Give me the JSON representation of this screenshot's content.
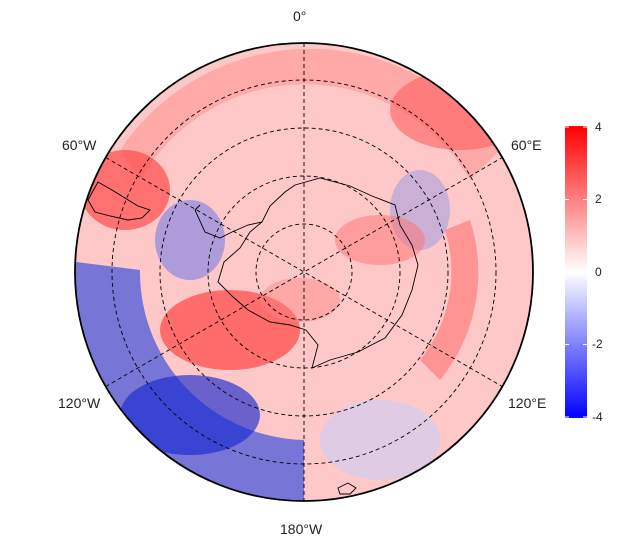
{
  "map": {
    "projection": "south-polar-stereographic",
    "grid_style": "dashed",
    "longitude_labels": [
      {
        "id": "lon-0",
        "text": "0°"
      },
      {
        "id": "lon-60e",
        "text": "60°E"
      },
      {
        "id": "lon-120e",
        "text": "120°E"
      },
      {
        "id": "lon-180w",
        "text": "180°W"
      },
      {
        "id": "lon-120w",
        "text": "120°W"
      },
      {
        "id": "lon-60w",
        "text": "60°W"
      }
    ],
    "field_summary": [
      {
        "region": "south-america-tip",
        "value": 3
      },
      {
        "region": "ross-sea-sector",
        "value": 3
      },
      {
        "region": "amundsen-pacific-ring",
        "value": -3.5
      },
      {
        "region": "weddell-sector",
        "value": -1.5
      },
      {
        "region": "indian-ocean-ring",
        "value": 1.5
      }
    ]
  },
  "colorbar": {
    "min": -4,
    "max": 4,
    "ticks": [
      "4",
      "2",
      "0",
      "-2",
      "-4"
    ],
    "colors": {
      "low": "#0000ff",
      "mid": "#ffffff",
      "high": "#ff0000"
    }
  }
}
